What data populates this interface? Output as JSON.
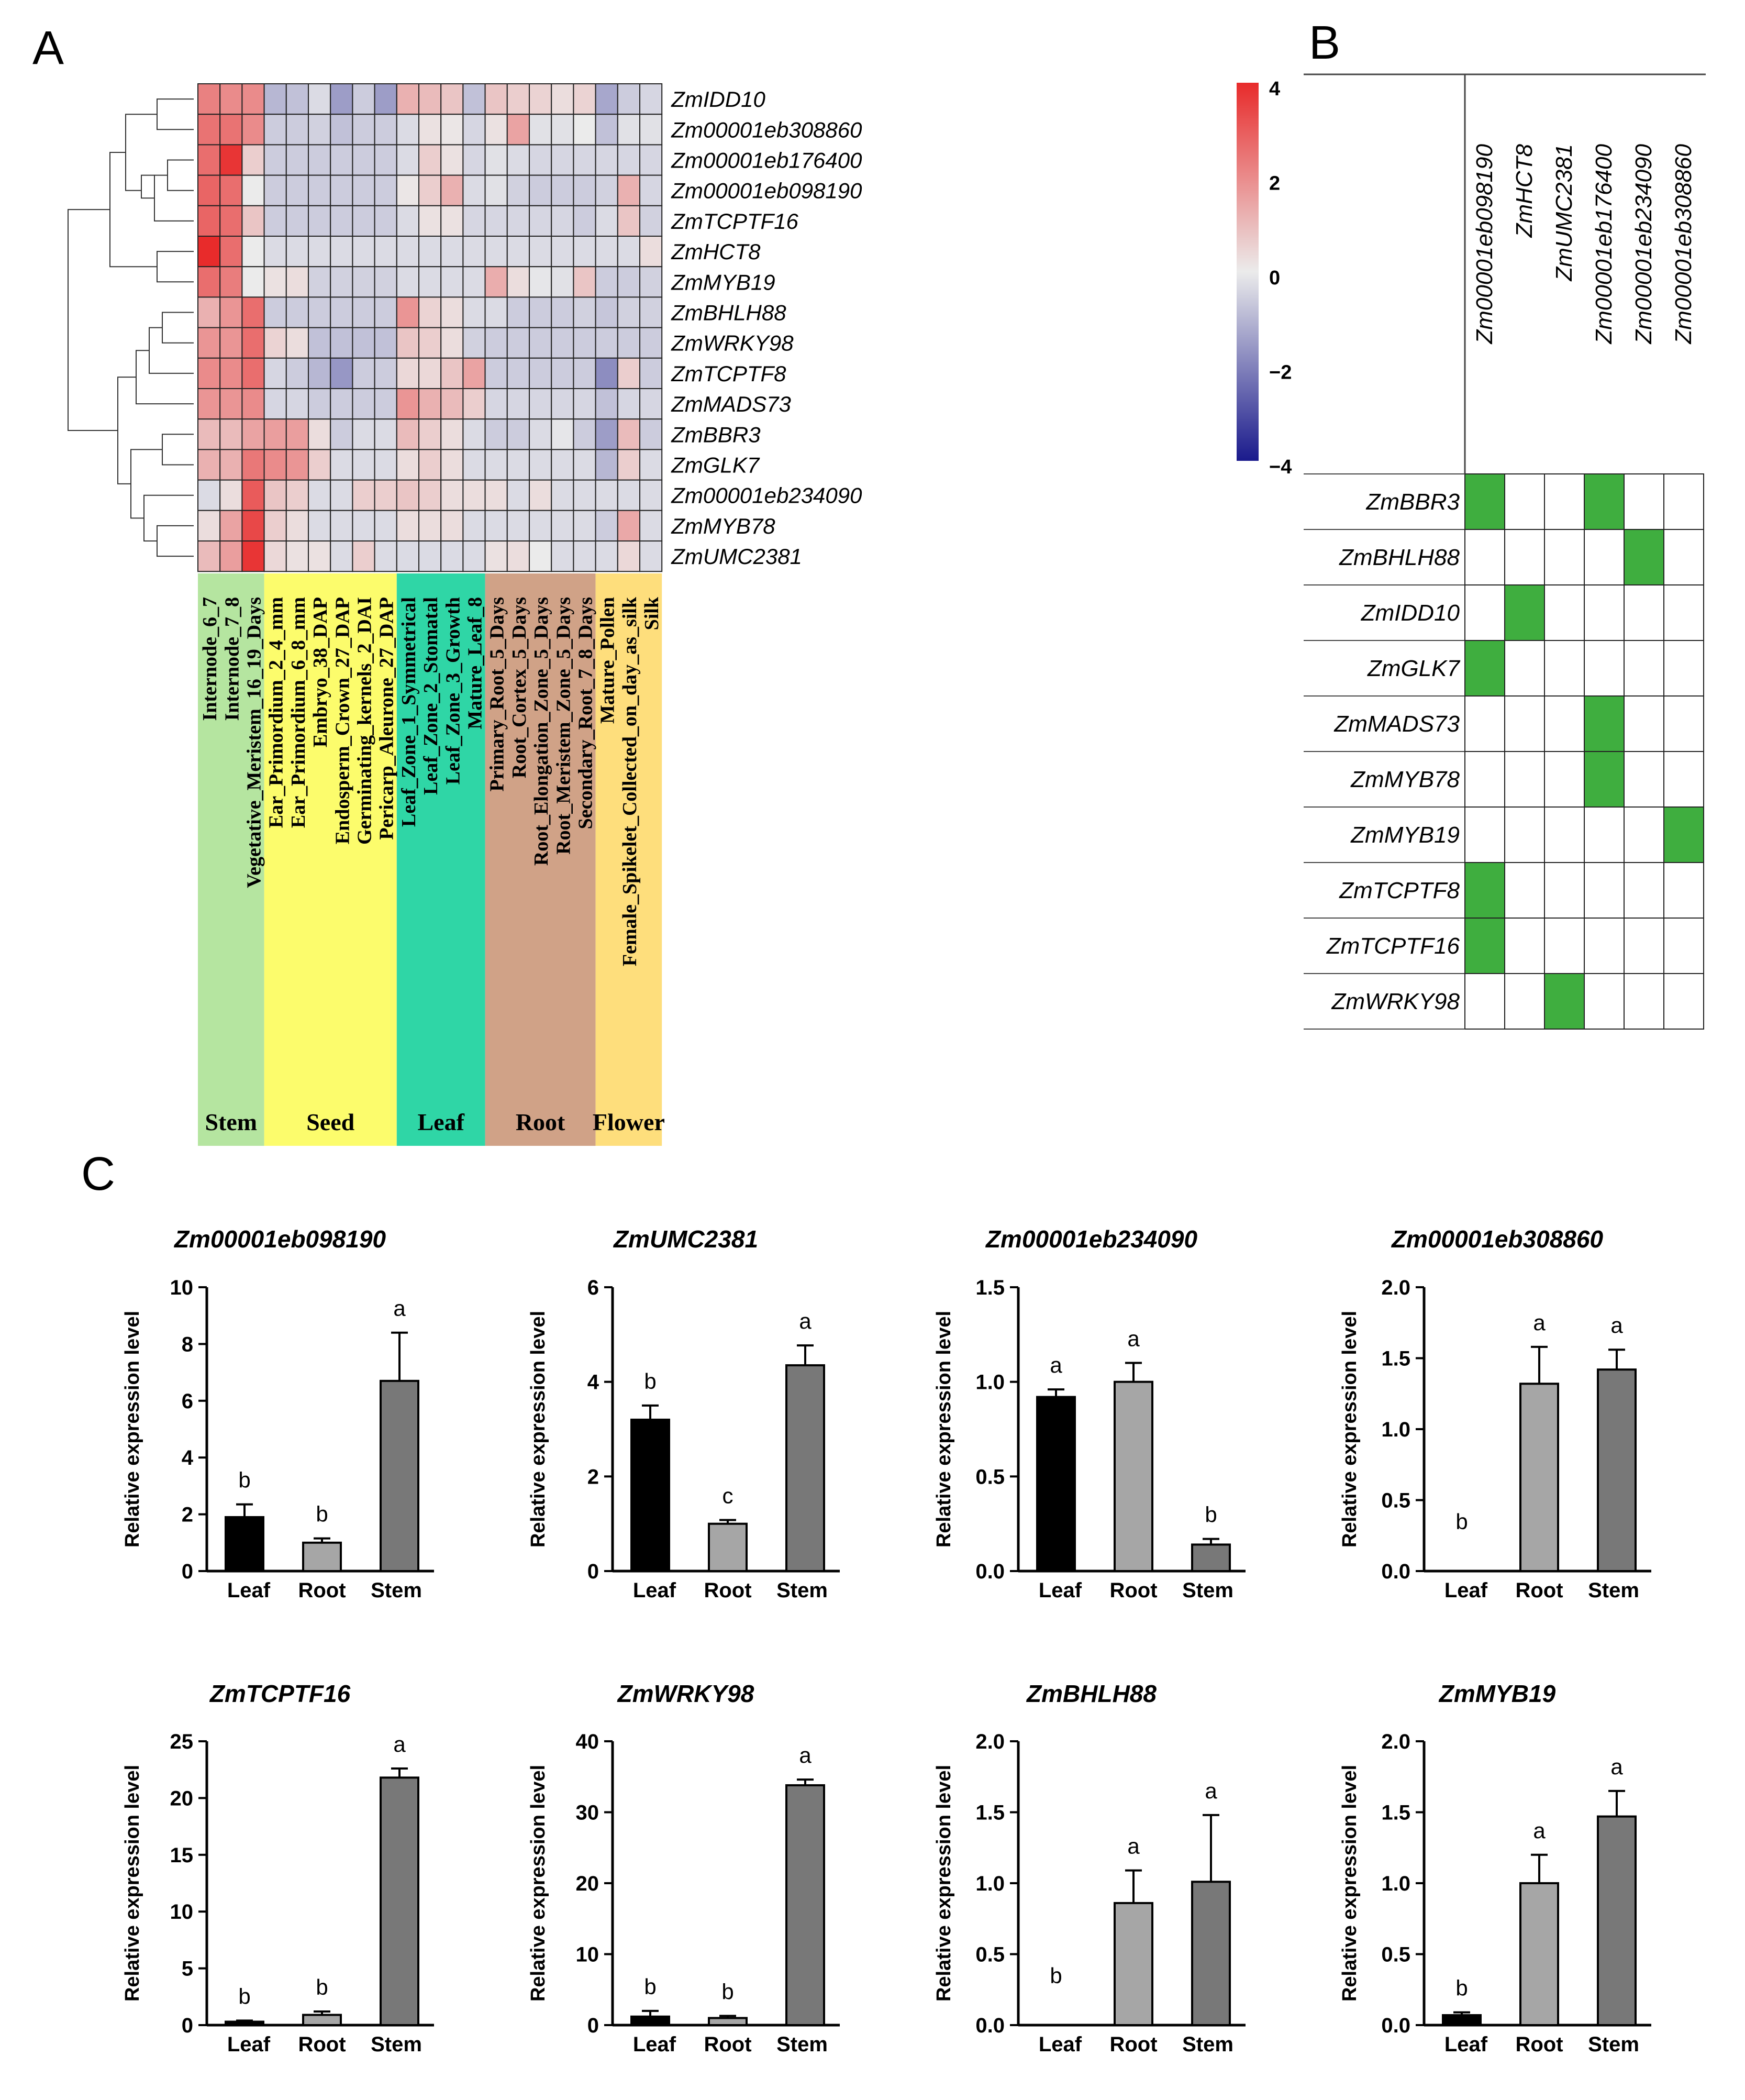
{
  "panel_labels": {
    "a": "A",
    "b": "B",
    "c": "C"
  },
  "chart_data": [
    {
      "type": "heatmap",
      "panel": "A",
      "rows": [
        "ZmIDD10",
        "Zm00001eb308860",
        "Zm00001eb176400",
        "Zm00001eb098190",
        "ZmTCPTF16",
        "ZmHCT8",
        "ZmMYB19",
        "ZmBHLH88",
        "ZmWRKY98",
        "ZmTCPTF8",
        "ZmMADS73",
        "ZmBBR3",
        "ZmGLK7",
        "Zm00001eb234090",
        "ZmMYB78",
        "ZmUMC2381"
      ],
      "columns": [
        "Internode_6_7",
        "Internode_7_8",
        "Vegetative_Meristem_16_19_Days",
        "Ear_Primordium_2_4_mm",
        "Ear_Primordium_6_8_mm",
        "Embryo_38_DAP",
        "Endosperm_Crown_27_DAP",
        "Germinating_kernels_2_DAI",
        "Pericarp_Aleurone_27_DAP",
        "Leaf_Zone_1_Symmetrical",
        "Leaf_Zone_2_Stomatal",
        "Leaf_Zone_3_Growth",
        "Mature_Leaf_8",
        "Primary_Root_5_Days",
        "Root_Cortex_5_Days",
        "Root_Elongation_Zone_5_Days",
        "Root_Meristem_Zone_5_Days",
        "Secondary_Root_7_8_Days",
        "Mature_Pollen",
        "Female_Spikelet_Collected_on_day_as_silk",
        "Silk"
      ],
      "groups": [
        {
          "name": "Stem",
          "count": 3,
          "color": "#b5e5a0"
        },
        {
          "name": "Seed",
          "count": 6,
          "color": "#fcfc6c"
        },
        {
          "name": "Leaf",
          "count": 4,
          "color": "#2fd6a6"
        },
        {
          "name": "Root",
          "count": 5,
          "color": "#d0a287"
        },
        {
          "name": "Flower",
          "count": 3,
          "color": "#fede7c"
        }
      ],
      "values": [
        [
          2.2,
          2.0,
          2.0,
          -1.0,
          -0.8,
          -0.3,
          -1.5,
          -0.6,
          -1.5,
          1.2,
          1.0,
          0.8,
          -0.8,
          0.8,
          0.6,
          0.5,
          0.3,
          0.5,
          -1.3,
          -0.6,
          -0.4
        ],
        [
          2.5,
          2.5,
          2.0,
          -0.6,
          -0.6,
          -0.5,
          -0.8,
          -0.6,
          -0.6,
          -0.3,
          0.2,
          0.1,
          -0.4,
          0.2,
          1.5,
          -0.2,
          -0.2,
          0.0,
          -0.8,
          -0.2,
          -0.2
        ],
        [
          2.6,
          3.8,
          0.6,
          -0.6,
          -0.6,
          -0.6,
          -0.6,
          -0.6,
          -0.6,
          -0.3,
          0.6,
          0.2,
          -0.4,
          -0.2,
          -0.3,
          -0.4,
          -0.4,
          -0.4,
          -0.4,
          -0.4,
          -0.4
        ],
        [
          2.8,
          2.6,
          0.0,
          -0.6,
          -0.6,
          -0.6,
          -0.6,
          -0.6,
          -0.6,
          0.1,
          0.6,
          1.2,
          -0.3,
          -0.2,
          -0.5,
          -0.6,
          -0.6,
          -0.6,
          -0.5,
          1.2,
          -0.4
        ],
        [
          2.8,
          2.6,
          0.8,
          -0.6,
          -0.6,
          -0.6,
          -0.6,
          -0.6,
          -0.6,
          -0.3,
          0.2,
          0.2,
          -0.4,
          -0.4,
          -0.4,
          -0.4,
          -0.4,
          -0.6,
          -0.3,
          0.8,
          -0.5
        ],
        [
          4.0,
          2.6,
          0.0,
          -0.3,
          -0.3,
          -0.3,
          -0.3,
          -0.3,
          -0.3,
          -0.3,
          -0.3,
          -0.3,
          -0.3,
          -0.3,
          -0.3,
          -0.3,
          -0.3,
          -0.3,
          -0.3,
          -0.3,
          0.3
        ],
        [
          2.6,
          2.3,
          0.0,
          0.2,
          0.3,
          -0.5,
          -0.5,
          -0.5,
          -0.5,
          -0.3,
          -0.3,
          -0.3,
          -0.3,
          1.3,
          0.3,
          -0.1,
          -0.2,
          0.8,
          -0.6,
          -0.6,
          -0.5
        ],
        [
          1.2,
          1.8,
          2.6,
          -0.6,
          -0.6,
          -0.6,
          -0.6,
          -0.6,
          -0.6,
          1.8,
          0.5,
          0.3,
          -0.3,
          -0.3,
          -0.6,
          -0.6,
          -0.6,
          -0.5,
          -0.7,
          -0.5,
          -0.5
        ],
        [
          1.8,
          1.8,
          2.6,
          0.5,
          0.3,
          -0.8,
          -0.8,
          -0.8,
          -0.8,
          0.8,
          0.6,
          0.3,
          -0.5,
          -0.6,
          -0.6,
          -0.6,
          -0.6,
          -0.6,
          -0.6,
          -0.6,
          -0.6
        ],
        [
          2.0,
          2.0,
          2.6,
          -0.4,
          -0.6,
          -1.0,
          -1.6,
          -0.6,
          -0.6,
          0.4,
          0.4,
          0.8,
          1.5,
          -0.6,
          -0.6,
          -0.6,
          -0.6,
          -0.6,
          -1.8,
          0.6,
          -0.6
        ],
        [
          1.8,
          1.8,
          2.0,
          -0.4,
          -0.4,
          -0.6,
          -0.6,
          -0.6,
          -0.6,
          1.8,
          1.2,
          1.0,
          0.6,
          -0.4,
          -0.4,
          -0.4,
          -0.4,
          -0.4,
          -0.8,
          -0.4,
          -0.4
        ],
        [
          1.0,
          1.0,
          1.5,
          1.6,
          1.6,
          0.3,
          -0.6,
          -0.3,
          -0.3,
          1.0,
          0.6,
          0.3,
          -0.3,
          -0.6,
          -0.6,
          -0.3,
          -0.1,
          -0.6,
          -1.5,
          1.0,
          -0.6
        ],
        [
          1.2,
          1.2,
          2.4,
          2.0,
          1.8,
          0.6,
          -0.3,
          -0.3,
          -0.3,
          0.3,
          0.6,
          0.3,
          -0.3,
          -0.3,
          -0.3,
          -0.3,
          -0.3,
          -0.3,
          -1.0,
          0.6,
          -0.3
        ],
        [
          -0.3,
          0.3,
          3.0,
          0.8,
          0.6,
          -0.3,
          -0.3,
          0.6,
          0.6,
          0.8,
          0.6,
          0.3,
          0.3,
          0.3,
          -0.3,
          0.3,
          -0.3,
          -0.3,
          -0.3,
          -0.3,
          -0.3
        ],
        [
          0.3,
          1.5,
          3.4,
          0.6,
          0.3,
          -0.3,
          -0.3,
          -0.3,
          -0.3,
          0.3,
          0.3,
          0.3,
          -0.3,
          -0.3,
          -0.3,
          -0.3,
          -0.3,
          -0.3,
          -0.6,
          1.4,
          -0.3
        ],
        [
          1.0,
          1.6,
          3.8,
          0.4,
          0.2,
          0.2,
          -0.3,
          0.6,
          -0.3,
          -0.3,
          -0.3,
          -0.3,
          -0.3,
          0.2,
          0.3,
          0.0,
          -0.3,
          -0.3,
          -0.3,
          0.4,
          -0.3
        ]
      ],
      "color_scale": {
        "min": -4,
        "max": 4,
        "ticks": [
          4,
          2,
          0,
          -2,
          -4
        ],
        "low_color": "#1a1a8c",
        "mid_color": "#ebebeb",
        "high_color": "#e82b2b"
      }
    },
    {
      "type": "table",
      "panel": "B",
      "columns": [
        "Zm00001eb098190",
        "ZmHCT8",
        "ZmUMC2381",
        "Zm00001eb176400",
        "Zm00001eb234090",
        "Zm00001eb308860"
      ],
      "rows": [
        "ZmBBR3",
        "ZmBHLH88",
        "ZmIDD10",
        "ZmGLK7",
        "ZmMADS73",
        "ZmMYB78",
        "ZmMYB19",
        "ZmTCPTF8",
        "ZmTCPTF16",
        "ZmWRKY98"
      ],
      "cells": [
        [
          1,
          0,
          0,
          1,
          0,
          0
        ],
        [
          0,
          0,
          0,
          0,
          1,
          0
        ],
        [
          0,
          1,
          0,
          0,
          0,
          0
        ],
        [
          1,
          0,
          0,
          0,
          0,
          0
        ],
        [
          0,
          0,
          0,
          1,
          0,
          0
        ],
        [
          0,
          0,
          0,
          1,
          0,
          0
        ],
        [
          0,
          0,
          0,
          0,
          0,
          1
        ],
        [
          1,
          0,
          0,
          0,
          0,
          0
        ],
        [
          1,
          0,
          0,
          0,
          0,
          0
        ],
        [
          0,
          0,
          1,
          0,
          0,
          0
        ]
      ],
      "fill_color": "#3fae3f"
    },
    {
      "type": "bar",
      "panel": "C",
      "title": "Zm00001eb098190",
      "categories": [
        "Leaf",
        "Root",
        "Stem"
      ],
      "values": [
        1.9,
        1.0,
        6.7
      ],
      "errors": [
        0.45,
        0.15,
        1.7
      ],
      "letters": [
        "b",
        "b",
        "a"
      ],
      "ylim": [
        0,
        10
      ],
      "yticks": [
        "0",
        "2",
        "4",
        "6",
        "8",
        "10"
      ],
      "ylabel": "Relative expression level"
    },
    {
      "type": "bar",
      "panel": "C",
      "title": "ZmUMC2381",
      "categories": [
        "Leaf",
        "Root",
        "Stem"
      ],
      "values": [
        3.2,
        1.0,
        4.35
      ],
      "errors": [
        0.3,
        0.08,
        0.42
      ],
      "letters": [
        "b",
        "c",
        "a"
      ],
      "ylim": [
        0,
        6
      ],
      "yticks": [
        "0",
        "2",
        "4",
        "6"
      ],
      "ylabel": "Relative expression level"
    },
    {
      "type": "bar",
      "panel": "C",
      "title": "Zm00001eb234090",
      "categories": [
        "Leaf",
        "Root",
        "Stem"
      ],
      "values": [
        0.92,
        1.0,
        0.14
      ],
      "errors": [
        0.04,
        0.1,
        0.03
      ],
      "letters": [
        "a",
        "a",
        "b"
      ],
      "ylim": [
        0,
        1.5
      ],
      "yticks": [
        "0.0",
        "0.5",
        "1.0",
        "1.5"
      ],
      "ylabel": "Relative expression level"
    },
    {
      "type": "bar",
      "panel": "C",
      "title": "Zm00001eb308860",
      "categories": [
        "Leaf",
        "Root",
        "Stem"
      ],
      "values": [
        0.0,
        1.32,
        1.42
      ],
      "errors": [
        0.0,
        0.26,
        0.14
      ],
      "letters": [
        "b",
        "a",
        "a"
      ],
      "ylim": [
        0,
        2.0
      ],
      "yticks": [
        "0.0",
        "0.5",
        "1.0",
        "1.5",
        "2.0"
      ],
      "ylabel": "Relative expression level"
    },
    {
      "type": "bar",
      "panel": "C",
      "title": "ZmTCPTF16",
      "categories": [
        "Leaf",
        "Root",
        "Stem"
      ],
      "values": [
        0.3,
        0.9,
        21.8
      ],
      "errors": [
        0.1,
        0.3,
        0.8
      ],
      "letters": [
        "b",
        "b",
        "a"
      ],
      "ylim": [
        0,
        25
      ],
      "yticks": [
        "0",
        "5",
        "10",
        "15",
        "20",
        "25"
      ],
      "ylabel": "Relative expression level"
    },
    {
      "type": "bar",
      "panel": "C",
      "title": "ZmWRKY98",
      "categories": [
        "Leaf",
        "Root",
        "Stem"
      ],
      "values": [
        1.2,
        1.0,
        33.8
      ],
      "errors": [
        0.8,
        0.3,
        0.8
      ],
      "letters": [
        "b",
        "b",
        "a"
      ],
      "ylim": [
        0,
        40
      ],
      "yticks": [
        "0",
        "10",
        "20",
        "30",
        "40"
      ],
      "ylabel": "Relative expression level"
    },
    {
      "type": "bar",
      "panel": "C",
      "title": "ZmBHLH88",
      "categories": [
        "Leaf",
        "Root",
        "Stem"
      ],
      "values": [
        0.0,
        0.86,
        1.01
      ],
      "errors": [
        0.0,
        0.23,
        0.47
      ],
      "letters": [
        "b",
        "a",
        "a"
      ],
      "ylim": [
        0,
        2.0
      ],
      "yticks": [
        "0.0",
        "0.5",
        "1.0",
        "1.5",
        "2.0"
      ],
      "ylabel": "Relative expression level"
    },
    {
      "type": "bar",
      "panel": "C",
      "title": "ZmMYB19",
      "categories": [
        "Leaf",
        "Root",
        "Stem"
      ],
      "values": [
        0.07,
        1.0,
        1.47
      ],
      "errors": [
        0.02,
        0.2,
        0.18
      ],
      "letters": [
        "b",
        "a",
        "a"
      ],
      "ylim": [
        0,
        2.0
      ],
      "yticks": [
        "0.0",
        "0.5",
        "1.0",
        "1.5",
        "2.0"
      ],
      "ylabel": "Relative expression level"
    }
  ]
}
